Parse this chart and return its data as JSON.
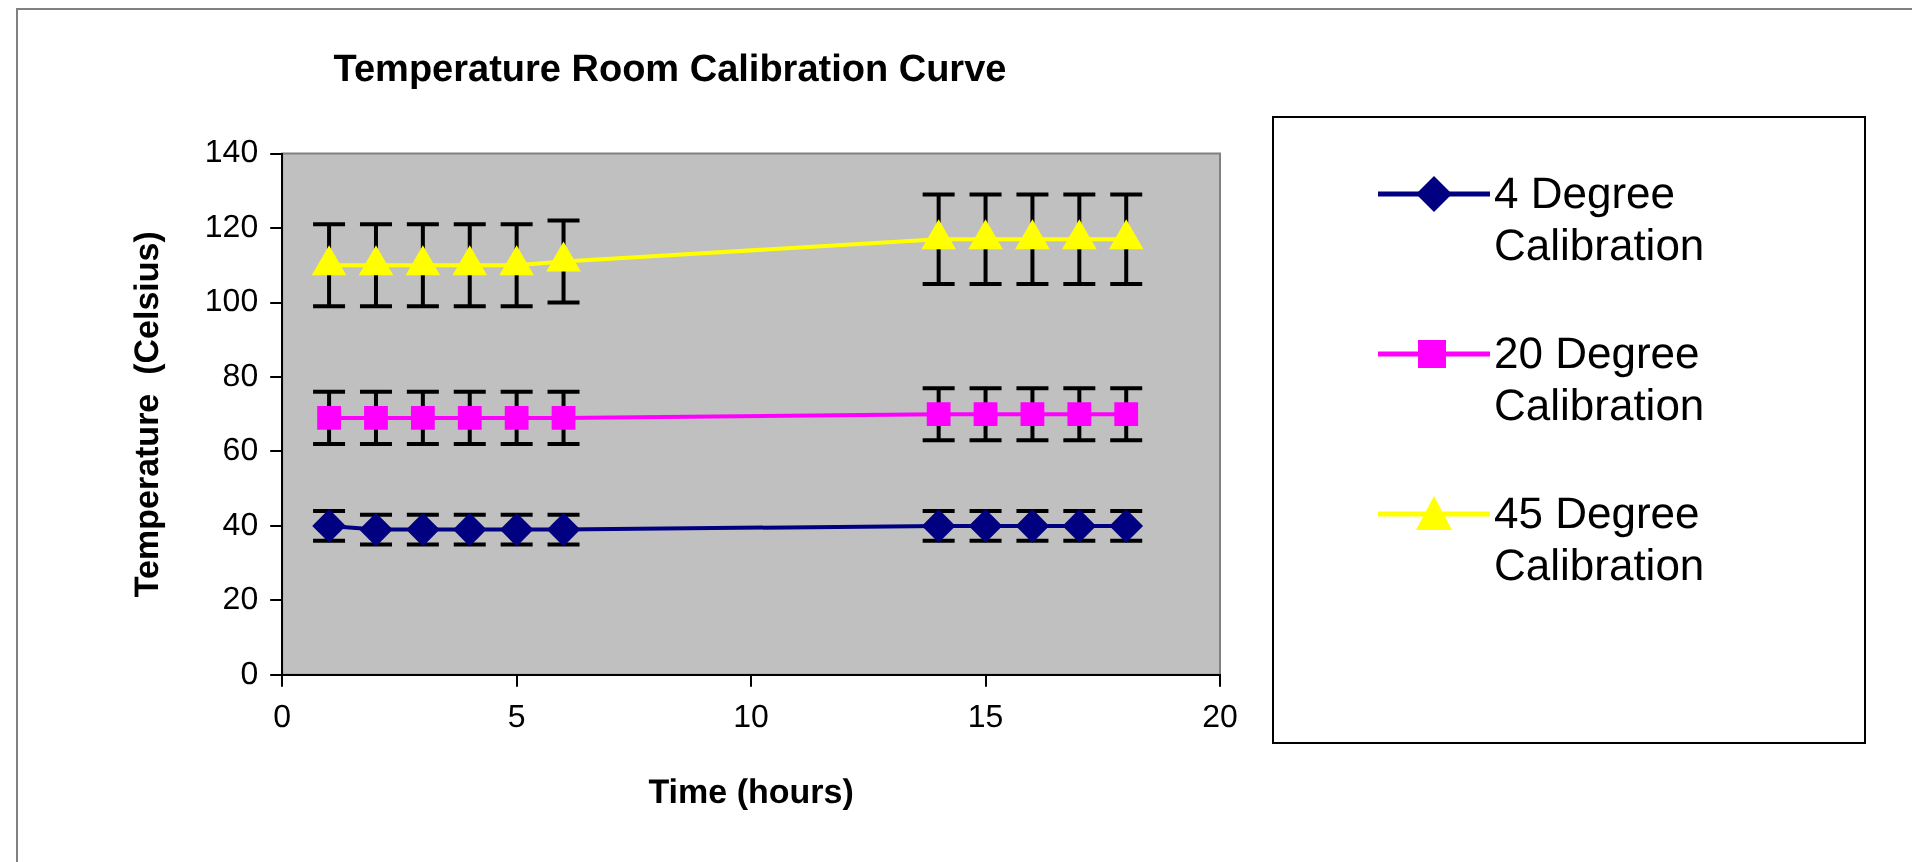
{
  "chart_data": {
    "type": "line",
    "title": "Temperature Room Calibration Curve",
    "xlabel": "Time (hours)",
    "ylabel": "Temperature  (Celsius)",
    "x": [
      1,
      2,
      3,
      4,
      5,
      6,
      14,
      15,
      16,
      17,
      18
    ],
    "xlim": [
      0,
      20
    ],
    "xticks": [
      0,
      5,
      10,
      15,
      20
    ],
    "ylim": [
      0,
      140
    ],
    "yticks": [
      0,
      20,
      40,
      60,
      80,
      100,
      120,
      140
    ],
    "grid": false,
    "legend": "right",
    "series": [
      {
        "name": "4 Degree Calibration",
        "color": "#000080",
        "marker": "diamond",
        "values": [
          40,
          39,
          39,
          39,
          39,
          39,
          40,
          40,
          40,
          40,
          40
        ],
        "errors": [
          4,
          4,
          4,
          4,
          4,
          4,
          4,
          4,
          4,
          4,
          4
        ]
      },
      {
        "name": "20 Degree Calibration",
        "color": "#ff00ff",
        "marker": "square",
        "values": [
          69,
          69,
          69,
          69,
          69,
          69,
          70,
          70,
          70,
          70,
          70
        ],
        "errors": [
          7,
          7,
          7,
          7,
          7,
          7,
          7,
          7,
          7,
          7,
          7
        ]
      },
      {
        "name": "45 Degree Calibration",
        "color": "#ffff00",
        "marker": "triangle",
        "values": [
          110,
          110,
          110,
          110,
          110,
          111,
          117,
          117,
          117,
          117,
          117
        ],
        "errors": [
          11,
          11,
          11,
          11,
          11,
          11,
          12,
          12,
          12,
          12,
          12
        ]
      }
    ]
  }
}
